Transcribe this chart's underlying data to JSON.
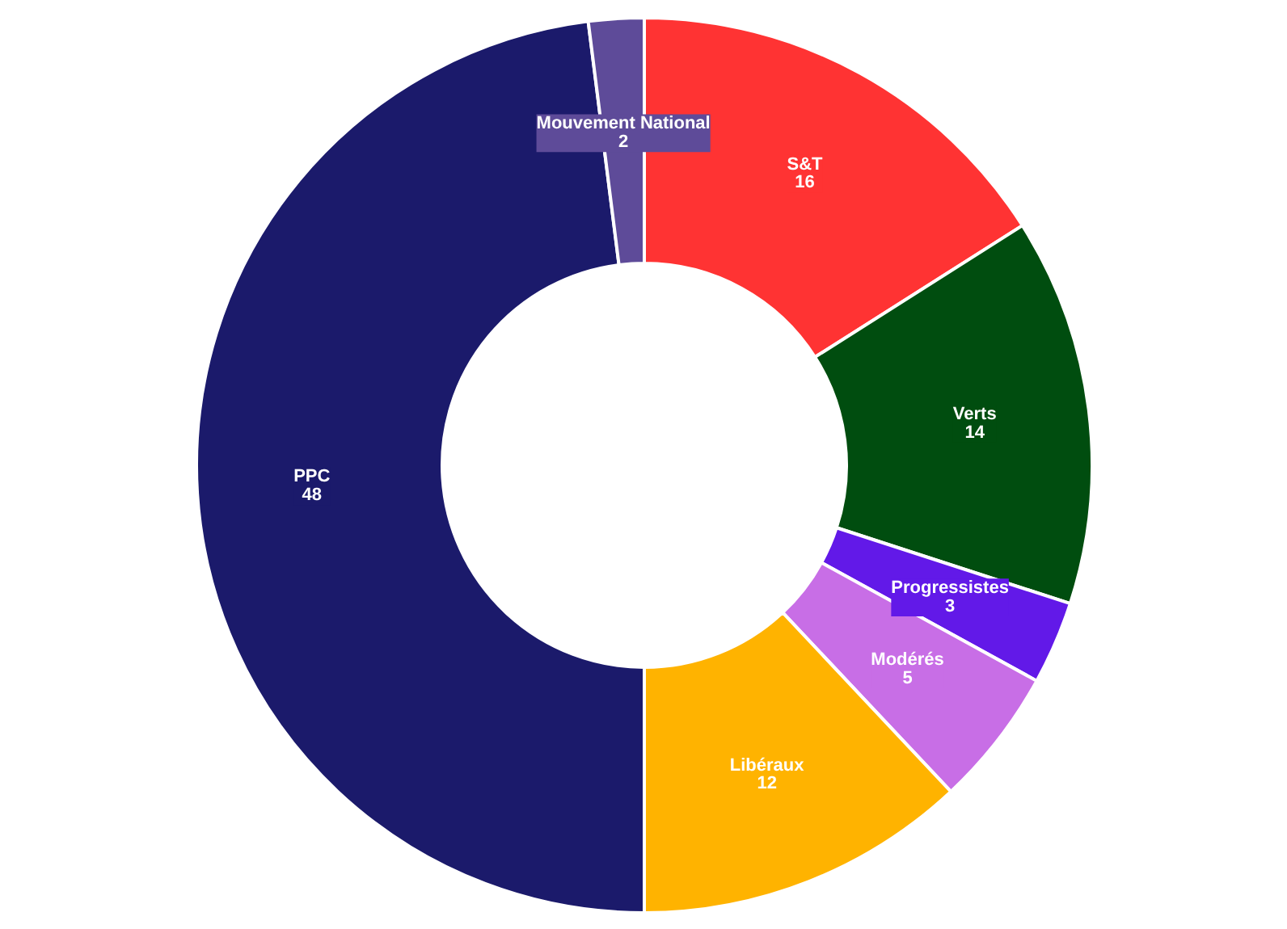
{
  "chart_data": {
    "type": "donut",
    "categories": [
      "S&T",
      "Verts",
      "Progressistes",
      "Modérés",
      "Libéraux",
      "PPC",
      "Mouvement National"
    ],
    "values": [
      16,
      14,
      3,
      5,
      12,
      48,
      2
    ],
    "colors": [
      "#ff3333",
      "#004d0f",
      "#6219e8",
      "#c86ee6",
      "#ffb300",
      "#1b1a6b",
      "#5e4b99"
    ],
    "data_labels": true
  }
}
